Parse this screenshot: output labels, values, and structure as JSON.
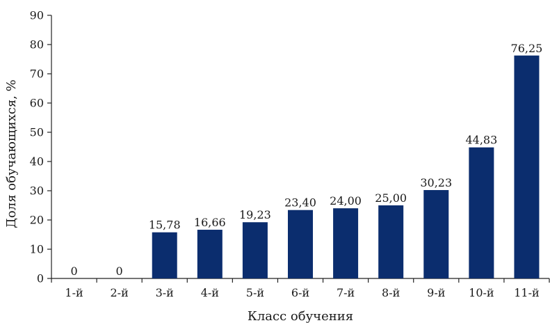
{
  "chart_data": {
    "type": "bar",
    "categories": [
      "1-й",
      "2-й",
      "3-й",
      "4-й",
      "5-й",
      "6-й",
      "7-й",
      "8-й",
      "9-й",
      "10-й",
      "11-й"
    ],
    "values": [
      0,
      0,
      15.78,
      16.66,
      19.23,
      23.4,
      24.0,
      25.0,
      30.23,
      44.83,
      76.25
    ],
    "data_labels": [
      "0",
      "0",
      "15,78",
      "16,66",
      "19,23",
      "23,40",
      "24,00",
      "25,00",
      "30,23",
      "44,83",
      "76,25"
    ],
    "xlabel": "Класс обучения",
    "ylabel": "Доля обучающихся, %",
    "ylim": [
      0,
      90
    ],
    "yticks": [
      0,
      10,
      20,
      30,
      40,
      50,
      60,
      70,
      80,
      90
    ],
    "grid": false,
    "bar_color": "#0b2d6e"
  }
}
